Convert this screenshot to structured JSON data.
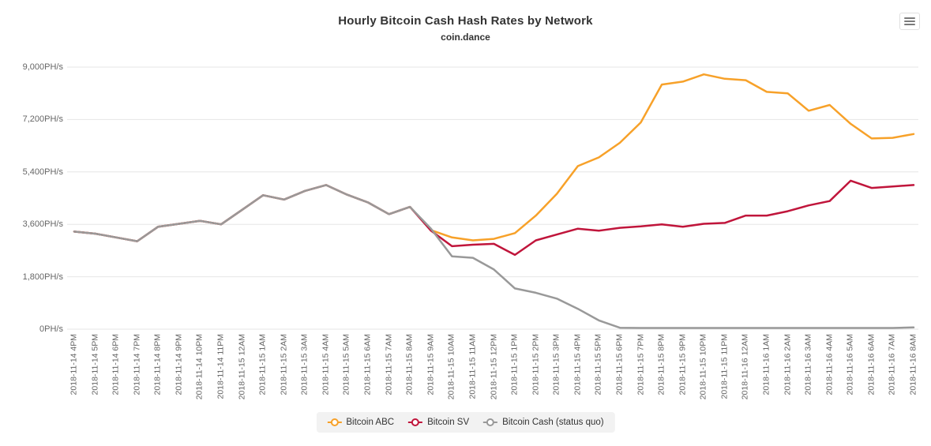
{
  "chart_data": {
    "type": "line",
    "title": "Hourly Bitcoin Cash Hash Rates by Network",
    "subtitle": "coin.dance",
    "xlabel": "",
    "ylabel": "",
    "ylim": [
      0,
      9000
    ],
    "grid": true,
    "legend_position": "bottom",
    "ytick_values": [
      0,
      1800,
      3600,
      5400,
      7200,
      9000
    ],
    "ytick_labels": [
      "0PH/s",
      "1,800PH/s",
      "3,600PH/s",
      "5,400PH/s",
      "7,200PH/s",
      "9,000PH/s"
    ],
    "categories": [
      "2018-11-14 4PM",
      "2018-11-14 5PM",
      "2018-11-14 6PM",
      "2018-11-14 7PM",
      "2018-11-14 8PM",
      "2018-11-14 9PM",
      "2018-11-14 10PM",
      "2018-11-14 11PM",
      "2018-11-15 12AM",
      "2018-11-15 1AM",
      "2018-11-15 2AM",
      "2018-11-15 3AM",
      "2018-11-15 4AM",
      "2018-11-15 5AM",
      "2018-11-15 6AM",
      "2018-11-15 7AM",
      "2018-11-15 8AM",
      "2018-11-15 9AM",
      "2018-11-15 10AM",
      "2018-11-15 11AM",
      "2018-11-15 12PM",
      "2018-11-15 1PM",
      "2018-11-15 2PM",
      "2018-11-15 3PM",
      "2018-11-15 4PM",
      "2018-11-15 5PM",
      "2018-11-15 6PM",
      "2018-11-15 7PM",
      "2018-11-15 8PM",
      "2018-11-15 9PM",
      "2018-11-15 10PM",
      "2018-11-15 11PM",
      "2018-11-16 12AM",
      "2018-11-16 1AM",
      "2018-11-16 2AM",
      "2018-11-16 3AM",
      "2018-11-16 4AM",
      "2018-11-16 5AM",
      "2018-11-16 6AM",
      "2018-11-16 7AM",
      "2018-11-16 8AM"
    ],
    "series": [
      {
        "name": "Bitcoin ABC",
        "color": "#f7a129",
        "values": [
          3350,
          3280,
          3150,
          3020,
          3520,
          3620,
          3720,
          3600,
          4100,
          4600,
          4450,
          4750,
          4950,
          4620,
          4350,
          3950,
          4200,
          3400,
          3150,
          3050,
          3100,
          3300,
          3900,
          4650,
          5600,
          5900,
          6400,
          7100,
          8400,
          8500,
          8750,
          8600,
          8550,
          8150,
          8100,
          7500,
          7700,
          7050,
          6550,
          6570,
          6700
        ]
      },
      {
        "name": "Bitcoin SV",
        "color": "#c0153b",
        "values": [
          3350,
          3280,
          3150,
          3020,
          3520,
          3620,
          3720,
          3600,
          4100,
          4600,
          4450,
          4750,
          4950,
          4620,
          4350,
          3950,
          4200,
          3380,
          2850,
          2900,
          2930,
          2550,
          3050,
          3250,
          3450,
          3380,
          3480,
          3530,
          3600,
          3520,
          3620,
          3650,
          3900,
          3900,
          4050,
          4250,
          4400,
          5100,
          4850,
          4900,
          4950
        ]
      },
      {
        "name": "Bitcoin Cash (status quo)",
        "color": "#999999",
        "values": [
          3350,
          3280,
          3150,
          3020,
          3520,
          3620,
          3720,
          3600,
          4100,
          4600,
          4450,
          4750,
          4950,
          4620,
          4350,
          3950,
          4200,
          3450,
          2500,
          2450,
          2050,
          1400,
          1250,
          1050,
          700,
          300,
          50,
          40,
          40,
          40,
          40,
          40,
          40,
          40,
          40,
          40,
          40,
          40,
          40,
          40,
          60
        ]
      }
    ],
    "grid_color": "#e6e6e6",
    "axis_label_color": "#666666",
    "legend_background": "#f2f2f2"
  }
}
